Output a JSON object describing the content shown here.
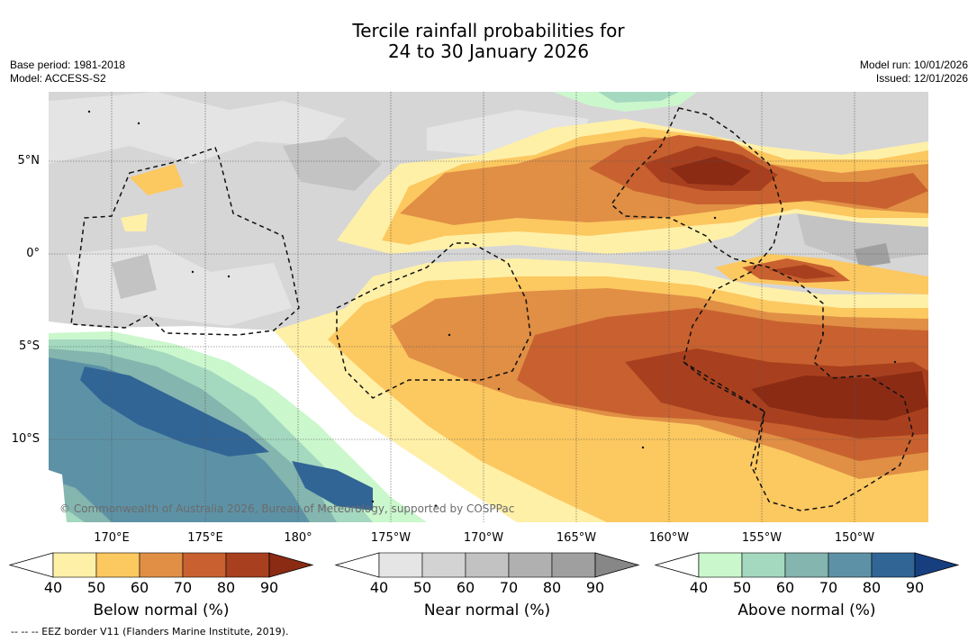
{
  "title": {
    "line1": "Tercile rainfall probabilities for",
    "line2": "24 to 30 January 2026"
  },
  "meta": {
    "base_period": "Base period: 1981-2018",
    "model": "Model: ACCESS-S2",
    "model_run": "Model run: 10/01/2026",
    "issued": "Issued: 12/01/2026"
  },
  "map": {
    "credit": "© Commonwealth of Australia 2026, Bureau of Meteorology, supported by COSPPac",
    "lat_labels": [
      "5°N",
      "0°",
      "5°S",
      "10°S"
    ],
    "lon_labels": [
      "170°E",
      "175°E",
      "180°",
      "175°W",
      "170°W",
      "165°W",
      "160°W",
      "155°W",
      "150°W"
    ]
  },
  "colorbars": [
    {
      "label": "Below normal (%)",
      "ticks": [
        "40",
        "50",
        "60",
        "70",
        "80",
        "90"
      ],
      "colors": [
        "#fff0a8",
        "#fcc860",
        "#e08f45",
        "#c8612f",
        "#a8401f",
        "#8b2b14"
      ]
    },
    {
      "label": "Near normal (%)",
      "ticks": [
        "40",
        "50",
        "60",
        "70",
        "80",
        "90"
      ],
      "colors": [
        "#e5e5e5",
        "#d3d3d3",
        "#c2c2c2",
        "#b0b0b0",
        "#9f9f9f",
        "#878787"
      ]
    },
    {
      "label": "Above normal (%)",
      "ticks": [
        "40",
        "50",
        "60",
        "70",
        "80",
        "90"
      ],
      "colors": [
        "#cbf7cd",
        "#a4d8bf",
        "#84b5ae",
        "#5d92a6",
        "#316596",
        "#173f80"
      ]
    }
  ],
  "footer": "--  --  -- EEZ border V11 (Flanders Marine Institute, 2019)."
}
